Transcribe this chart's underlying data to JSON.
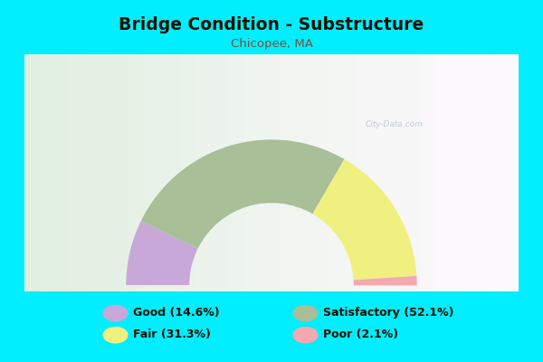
{
  "title": "Bridge Condition - Substructure",
  "subtitle": "Chicopee, MA",
  "title_color": "#1a1100",
  "subtitle_color": "#7b4f3a",
  "background_outer": "#00eeff",
  "background_chart_tl": "#e8f5e0",
  "background_chart_tr": "#f0f8f0",
  "background_chart_bl": "#c8e8c0",
  "watermark": "City-Data.com",
  "segments": [
    {
      "label": "Good",
      "pct": 14.6,
      "color": "#c8a8d8"
    },
    {
      "label": "Satisfactory",
      "pct": 52.1,
      "color": "#a8bf98"
    },
    {
      "label": "Fair",
      "pct": 31.3,
      "color": "#f0f080"
    },
    {
      "label": "Poor",
      "pct": 2.1,
      "color": "#f4a8b0"
    }
  ],
  "legend_items": [
    {
      "label": "Good (14.6%)",
      "color": "#c8a8d8",
      "col": 0,
      "row": 0
    },
    {
      "label": "Satisfactory (52.1%)",
      "color": "#a8bf98",
      "col": 1,
      "row": 0
    },
    {
      "label": "Fair (31.3%)",
      "color": "#f0f080",
      "col": 0,
      "row": 1
    },
    {
      "label": "Poor (2.1%)",
      "color": "#f4a8b0",
      "col": 1,
      "row": 1
    }
  ],
  "figsize": [
    6.0,
    4.0
  ],
  "dpi": 100
}
